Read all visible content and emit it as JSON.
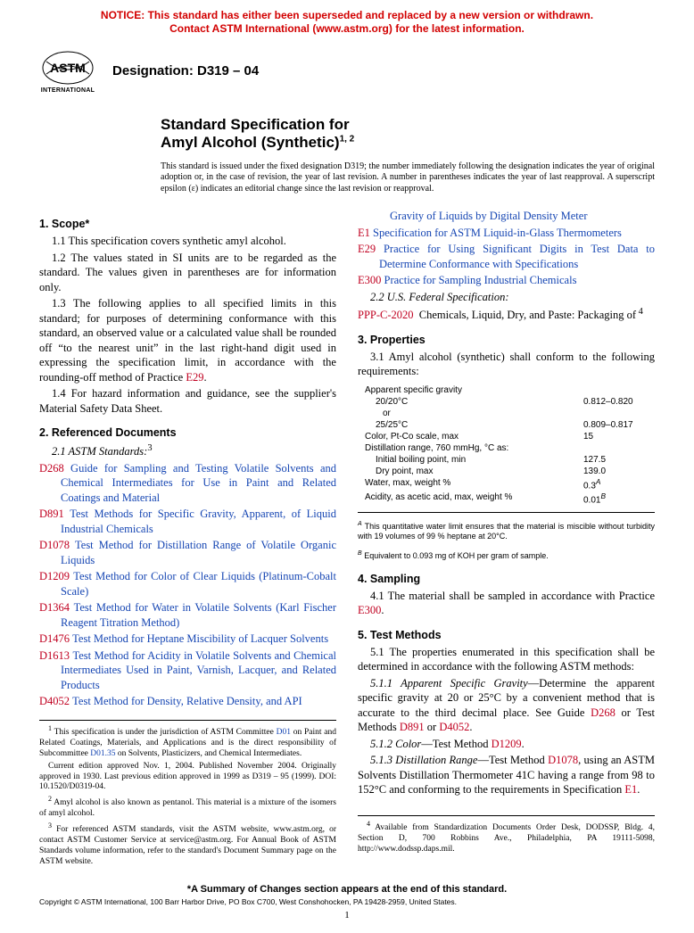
{
  "notice": {
    "line1": "NOTICE: This standard has either been superseded and replaced by a new version or withdrawn.",
    "line2": "Contact ASTM International (www.astm.org) for the latest information."
  },
  "logo_label": "INTERNATIONAL",
  "designation": "Designation: D319 – 04",
  "title_line1": "Standard Specification for",
  "title_line2": "Amyl Alcohol (Synthetic)",
  "title_sup": "1, 2",
  "issue_note": "This standard is issued under the fixed designation D319; the number immediately following the designation indicates the year of original adoption or, in the case of revision, the year of last revision. A number in parentheses indicates the year of last reapproval. A superscript epsilon (ε) indicates an editorial change since the last revision or reapproval.",
  "sections": {
    "scope_head": "1. Scope*",
    "scope": {
      "p1": "1.1 This specification covers synthetic amyl alcohol.",
      "p2": "1.2 The values stated in SI units are to be regarded as the standard. The values given in parentheses are for information only.",
      "p3a": "1.3 The following applies to all specified limits in this standard; for purposes of determining conformance with this standard, an observed value or a calculated value shall be rounded off “to the nearest unit” in the last right-hand digit used in expressing the specification limit, in accordance with the rounding-off method of Practice ",
      "p3b": "E29",
      "p3c": ".",
      "p4": "1.4 For hazard information and guidance, see the supplier's Material Safety Data Sheet."
    },
    "refdocs_head": "2. Referenced Documents",
    "refdocs_sub": "2.1 ASTM Standards:",
    "refdocs_fn": "3",
    "refs": [
      {
        "code": "D268",
        "text": "Guide for Sampling and Testing Volatile Solvents and Chemical Intermediates for Use in Paint and Related Coatings and Material"
      },
      {
        "code": "D891",
        "text": "Test Methods for Specific Gravity, Apparent, of Liquid Industrial Chemicals"
      },
      {
        "code": "D1078",
        "text": "Test Method for Distillation Range of Volatile Organic Liquids"
      },
      {
        "code": "D1209",
        "text": "Test Method for Color of Clear Liquids (Platinum-Cobalt Scale)"
      },
      {
        "code": "D1364",
        "text": "Test Method for Water in Volatile Solvents (Karl Fischer Reagent Titration Method)"
      },
      {
        "code": "D1476",
        "text": "Test Method for Heptane Miscibility of Lacquer Solvents"
      },
      {
        "code": "D1613",
        "text": "Test Method for Acidity in Volatile Solvents and Chemical Intermediates Used in Paint, Varnish, Lacquer, and Related Products"
      },
      {
        "code": "D4052",
        "text": "Test Method for Density, Relative Density, and API"
      }
    ],
    "col2_top": "Gravity of Liquids by Digital Density Meter",
    "refs2": [
      {
        "code": "E1",
        "text": "Specification for ASTM Liquid-in-Glass Thermometers"
      },
      {
        "code": "E29",
        "text": "Practice for Using Significant Digits in Test Data to Determine Conformance with Specifications"
      },
      {
        "code": "E300",
        "text": "Practice for Sampling Industrial Chemicals"
      }
    ],
    "fedspec_head": "2.2   U.S. Federal Specification:",
    "fedspec_code": "PPP-C-2020",
    "fedspec_text": "Chemicals, Liquid, Dry, and Paste: Packaging of",
    "fedspec_fn": " 4",
    "props_head": "3. Properties",
    "props_intro": "3.1 Amyl alcohol (synthetic) shall conform to the following requirements:",
    "props_table": [
      {
        "label": "Apparent specific gravity",
        "val": "",
        "indent": 0
      },
      {
        "label": "20/20°C",
        "val": "0.812–0.820",
        "indent": 1
      },
      {
        "label": "or",
        "val": "",
        "indent": 2
      },
      {
        "label": "25/25°C",
        "val": "0.809–0.817",
        "indent": 1
      },
      {
        "label": "Color, Pt-Co scale, max",
        "val": "15",
        "indent": 0
      },
      {
        "label": "Distillation range, 760 mmHg, °C as:",
        "val": "",
        "indent": 0
      },
      {
        "label": "Initial boiling point, min",
        "val": "127.5",
        "indent": 1
      },
      {
        "label": "Dry point, max",
        "val": "139.0",
        "indent": 1
      },
      {
        "label": "Water, max, weight %",
        "val": "0.3",
        "sup": "A",
        "indent": 0
      },
      {
        "label": "Acidity, as acetic acid, max, weight %",
        "val": "0.01",
        "sup": "B",
        "indent": 0
      }
    ],
    "tbl_note_a": "This quantitative water limit ensures that the material is miscible without turbidity with 19 volumes of 99 % heptane at 20°C.",
    "tbl_note_b": "Equivalent to 0.093 mg of KOH per gram of sample.",
    "sampling_head": "4. Sampling",
    "sampling_a": "4.1 The material shall be sampled in accordance with Practice ",
    "sampling_b": "E300",
    "sampling_c": ".",
    "tm_head": "5. Test Methods",
    "tm1": "5.1 The properties enumerated in this specification shall be determined in accordance with the following ASTM methods:",
    "tm11a": "5.1.1 Apparent Specific Gravity",
    "tm11b": "—Determine the apparent specific gravity at 20 or 25°C by a convenient method that is accurate to the third decimal place. See Guide ",
    "tm11c": "D268",
    "tm11d": " or Test Methods ",
    "tm11e": "D891",
    "tm11f": " or ",
    "tm11g": "D4052",
    "tm11h": ".",
    "tm12a": "5.1.2 Color",
    "tm12b": "—Test Method ",
    "tm12c": "D1209",
    "tm12d": ".",
    "tm13a": "5.1.3 Distillation Range",
    "tm13b": "—Test Method ",
    "tm13c": "D1078",
    "tm13d": ", using an ASTM Solvents Distillation Thermometer 41C having a range from 98 to 152°C and conforming to the requirements in Specification ",
    "tm13e": "E1",
    "tm13f": "."
  },
  "footnotes_left": [
    {
      "num": "1",
      "text": "This specification is under the jurisdiction of ASTM Committee ",
      "link": "D01",
      "text2": " on Paint and Related Coatings, Materials, and Applications and is the direct responsibility of Subcommittee ",
      "link2": "D01.35",
      "text3": " on Solvents, Plasticizers, and Chemical Intermediates."
    },
    {
      "num": "",
      "text": "Current edition approved Nov. 1, 2004. Published November 2004. Originally approved in 1930. Last previous edition approved in 1999 as D319 – 95 (1999). DOI: 10.1520/D0319-04."
    },
    {
      "num": "2",
      "text": "Amyl alcohol is also known as pentanol. This material is a mixture of the isomers of amyl alcohol."
    },
    {
      "num": "3",
      "text": "For referenced ASTM standards, visit the ASTM website, www.astm.org, or contact ASTM Customer Service at service@astm.org. For Annual Book of ASTM Standards volume information, refer to the standard's Document Summary page on the ASTM website."
    }
  ],
  "footnote_right": {
    "num": "4",
    "text": "Available from Standardization Documents Order Desk, DODSSP, Bldg. 4, Section D, 700 Robbins Ave., Philadelphia, PA 19111-5098, http://www.dodssp.daps.mil."
  },
  "summary_footer": "*A Summary of Changes section appears at the end of this standard.",
  "copyright": "Copyright © ASTM International, 100 Barr Harbor Drive, PO Box C700, West Conshohocken, PA 19428-2959, United States.",
  "page_num": "1"
}
